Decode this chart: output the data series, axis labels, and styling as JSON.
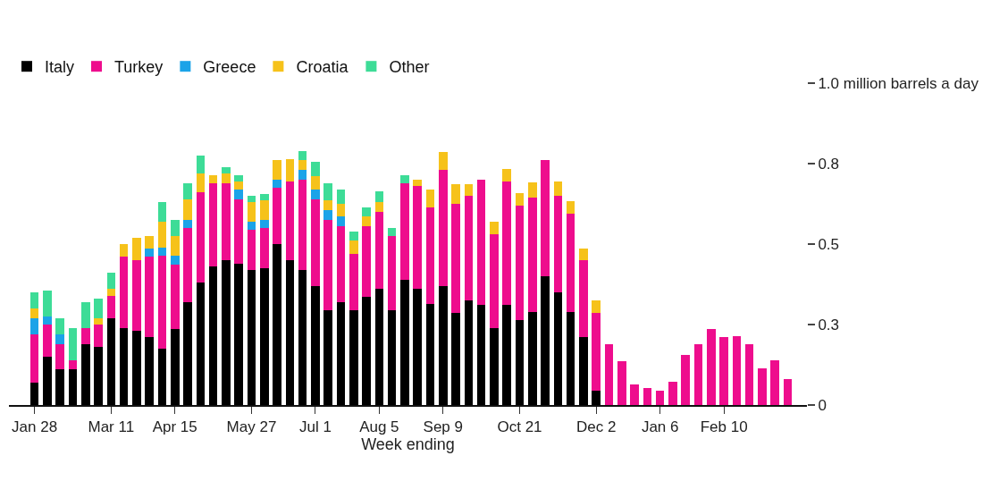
{
  "chart_data": {
    "type": "bar",
    "stacked": true,
    "xlabel": "Week ending",
    "categories": [
      "Jan 28",
      null,
      null,
      null,
      null,
      null,
      "Mar 11",
      null,
      null,
      null,
      null,
      "Apr 15",
      null,
      null,
      null,
      null,
      null,
      "May 27",
      null,
      null,
      null,
      null,
      "Jul 1",
      null,
      null,
      null,
      null,
      "Aug 5",
      null,
      null,
      null,
      null,
      "Sep 9",
      null,
      null,
      null,
      null,
      null,
      "Oct 21",
      null,
      null,
      null,
      null,
      null,
      "Dec 2",
      null,
      null,
      null,
      null,
      "Jan 6",
      null,
      null,
      null,
      null,
      "Feb 10",
      null,
      null,
      null,
      null,
      null
    ],
    "series": [
      {
        "name": "Italy",
        "color": "#000000",
        "values": [
          0.07,
          0.15,
          0.11,
          0.11,
          0.19,
          0.18,
          0.27,
          0.24,
          0.23,
          0.21,
          0.175,
          0.235,
          0.32,
          0.38,
          0.43,
          0.45,
          0.44,
          0.42,
          0.425,
          0.5,
          0.45,
          0.42,
          0.37,
          0.295,
          0.32,
          0.295,
          0.335,
          0.36,
          0.295,
          0.39,
          0.36,
          0.315,
          0.37,
          0.285,
          0.325,
          0.31,
          0.24,
          0.31,
          0.265,
          0.29,
          0.4,
          0.35,
          0.29,
          0.21,
          0.045,
          0,
          0,
          0,
          0,
          0,
          0,
          0,
          0,
          0,
          0,
          0,
          0,
          0,
          0,
          0
        ]
      },
      {
        "name": "Turkey",
        "color": "#ee0d8d",
        "values": [
          0.15,
          0.1,
          0.08,
          0.03,
          0.05,
          0.07,
          0.07,
          0.22,
          0.22,
          0.25,
          0.29,
          0.2,
          0.23,
          0.28,
          0.26,
          0.24,
          0.2,
          0.125,
          0.125,
          0.175,
          0.245,
          0.28,
          0.27,
          0.28,
          0.235,
          0.175,
          0.22,
          0.24,
          0.23,
          0.3,
          0.32,
          0.3,
          0.36,
          0.34,
          0.325,
          0.39,
          0.29,
          0.385,
          0.355,
          0.355,
          0.36,
          0.3,
          0.305,
          0.24,
          0.24,
          0.19,
          0.135,
          0.065,
          0.053,
          0.045,
          0.073,
          0.155,
          0.19,
          0.235,
          0.21,
          0.215,
          0.19,
          0.115,
          0.14,
          0.08
        ]
      },
      {
        "name": "Greece",
        "color": "#1ba3e8",
        "values": [
          0.05,
          0.025,
          0.03,
          0,
          0,
          0,
          0,
          0,
          0,
          0.025,
          0.025,
          0.03,
          0.025,
          0,
          0,
          0,
          0.03,
          0.025,
          0.025,
          0.025,
          0,
          0.03,
          0.03,
          0.03,
          0.03,
          0,
          0,
          0,
          0,
          0,
          0,
          0,
          0,
          0,
          0,
          0,
          0,
          0,
          0,
          0,
          0,
          0,
          0,
          0,
          0,
          0,
          0,
          0,
          0,
          0,
          0,
          0,
          0,
          0,
          0,
          0,
          0,
          0,
          0,
          0
        ]
      },
      {
        "name": "Croatia",
        "color": "#f6c21a",
        "values": [
          0.03,
          0,
          0,
          0,
          0,
          0.02,
          0.02,
          0.04,
          0.07,
          0.04,
          0.08,
          0.06,
          0.065,
          0.06,
          0.025,
          0.03,
          0.025,
          0.06,
          0.06,
          0.06,
          0.07,
          0.03,
          0.04,
          0.03,
          0.04,
          0.04,
          0.03,
          0.03,
          0,
          0,
          0.02,
          0.055,
          0.055,
          0.06,
          0.035,
          0,
          0.04,
          0.037,
          0.037,
          0.046,
          0,
          0.045,
          0.037,
          0.037,
          0.04,
          0,
          0,
          0,
          0,
          0,
          0,
          0,
          0,
          0,
          0,
          0,
          0,
          0,
          0,
          0
        ]
      },
      {
        "name": "Other",
        "color": "#3ddc97",
        "values": [
          0.05,
          0.08,
          0.05,
          0.1,
          0.08,
          0.06,
          0.05,
          0,
          0,
          0,
          0.06,
          0.05,
          0.05,
          0.055,
          0,
          0.02,
          0.02,
          0.02,
          0.02,
          0,
          0,
          0.03,
          0.045,
          0.055,
          0.045,
          0.03,
          0.03,
          0.035,
          0.025,
          0.025,
          0,
          0,
          0,
          0,
          0,
          0,
          0,
          0,
          0,
          0,
          0,
          0,
          0,
          0,
          0,
          0,
          0,
          0,
          0,
          0,
          0,
          0,
          0,
          0,
          0,
          0,
          0,
          0,
          0,
          0
        ]
      }
    ],
    "ylim": [
      0,
      1.0
    ],
    "yticks": [
      0,
      {
        "value": 0.25,
        "label": "0.3"
      },
      0.5,
      {
        "value": 0.75,
        "label": "0.8"
      },
      {
        "value": 1.0,
        "label": "1.0 million barrels a day"
      }
    ],
    "legend": "top left"
  }
}
